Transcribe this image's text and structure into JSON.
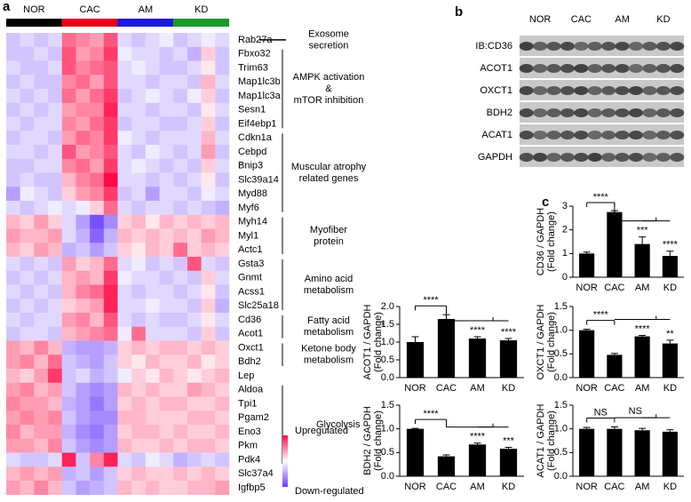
{
  "panel_labels": [
    "a",
    "b",
    "c"
  ],
  "blot": {
    "groups": [
      "NOR",
      "CAC",
      "AM",
      "KD"
    ],
    "rows": [
      "IB:CD36",
      "ACOT1",
      "OXCT1",
      "BDH2",
      "ACAT1",
      "GAPDH"
    ]
  },
  "chart_data": [
    {
      "type": "heatmap",
      "groups": [
        {
          "name": "NOR",
          "color": "#000000"
        },
        {
          "name": "CAC",
          "color": "#e8001c"
        },
        {
          "name": "AM",
          "color": "#1a1adc"
        },
        {
          "name": "KD",
          "color": "#1a9a2a"
        }
      ],
      "clim": [
        -1,
        1
      ],
      "colorscale": {
        "high": "#ff0a46",
        "mid": "#ffffff",
        "low": "#6a3cff"
      },
      "legend": {
        "high_label": "Upregulated",
        "low_label": "Down-regulated"
      },
      "rows": [
        "Rab27a",
        "Fbxo32",
        "Trim63",
        "Map1lc3b",
        "Map1lc3a",
        "Sesn1",
        "Eif4ebp1",
        "Cdkn1a",
        "Cebpd",
        "Bnip3",
        "Slc39a14",
        "Myd88",
        "Myf6",
        "Myh14",
        "Myl1",
        "Actc1",
        "Gsta3",
        "Gnmt",
        "Acss1",
        "Slc25a18",
        "Cd36",
        "Acot1",
        "Oxct1",
        "Bdh2",
        "Lep",
        "Aldoa",
        "Tpi1",
        "Pgam2",
        "Eno3",
        "Pkm",
        "Pdk4",
        "Slc37a4",
        "Igfbp5"
      ],
      "annotations": [
        {
          "lines": [
            "Exosome",
            "secretion"
          ]
        },
        {
          "lines": [
            "AMPK activation",
            "&",
            "mTOR inhibition"
          ]
        },
        {
          "lines": [
            "Muscular atrophy",
            "related genes"
          ]
        },
        {
          "lines": [
            "Myofiber",
            "protein"
          ]
        },
        {
          "lines": [
            "Amino acid",
            "metabolism"
          ]
        },
        {
          "lines": [
            "Fatty acid",
            "metabolism"
          ]
        },
        {
          "lines": [
            "Ketone body",
            "metabolism"
          ]
        },
        {
          "lines": [
            "Glycolysis"
          ]
        }
      ],
      "values": [
        [
          -0.3,
          -0.2,
          -0.3,
          -0.2,
          0.6,
          0.5,
          0.4,
          0.7,
          -0.2,
          -0.3,
          -0.2,
          -0.1,
          -0.3,
          -0.2,
          -0.1,
          -0.2
        ],
        [
          -0.3,
          -0.3,
          -0.2,
          -0.3,
          0.7,
          0.4,
          0.5,
          0.8,
          -0.1,
          -0.2,
          -0.2,
          -0.3,
          -0.2,
          -0.4,
          0.2,
          -0.3
        ],
        [
          -0.2,
          -0.3,
          -0.3,
          -0.2,
          0.7,
          0.5,
          0.6,
          0.7,
          -0.2,
          -0.1,
          -0.2,
          -0.3,
          -0.3,
          -0.2,
          0.1,
          -0.3
        ],
        [
          -0.3,
          -0.2,
          -0.3,
          -0.3,
          0.5,
          0.6,
          0.4,
          0.7,
          -0.2,
          -0.2,
          -0.3,
          -0.2,
          -0.2,
          -0.3,
          0.3,
          -0.2
        ],
        [
          -0.2,
          -0.3,
          -0.2,
          -0.3,
          0.6,
          0.4,
          0.6,
          0.8,
          -0.3,
          -0.2,
          -0.1,
          -0.2,
          -0.3,
          -0.1,
          0.2,
          -0.3
        ],
        [
          -0.3,
          -0.2,
          -0.3,
          -0.2,
          0.4,
          0.5,
          0.5,
          0.9,
          -0.2,
          -0.2,
          -0.3,
          -0.2,
          -0.2,
          -0.3,
          0.1,
          -0.2
        ],
        [
          -0.2,
          -0.3,
          -0.2,
          -0.2,
          0.5,
          0.4,
          0.6,
          0.8,
          -0.3,
          -0.2,
          -0.2,
          -0.3,
          -0.3,
          -0.2,
          0.2,
          -0.3
        ],
        [
          -0.3,
          -0.2,
          -0.2,
          -0.3,
          0.4,
          0.6,
          0.5,
          0.8,
          -0.1,
          -0.2,
          -0.3,
          -0.2,
          -0.2,
          -0.2,
          0.3,
          -0.2
        ],
        [
          -0.2,
          -0.2,
          -0.3,
          -0.2,
          0.7,
          0.4,
          0.5,
          0.7,
          -0.2,
          -0.3,
          -0.1,
          -0.2,
          -0.3,
          -0.2,
          0.4,
          -0.3
        ],
        [
          -0.3,
          -0.3,
          -0.2,
          -0.2,
          0.5,
          0.6,
          0.4,
          0.8,
          -0.2,
          -0.1,
          -0.2,
          -0.3,
          -0.2,
          -0.3,
          0.2,
          -0.2
        ],
        [
          -0.3,
          -0.2,
          -0.3,
          -0.3,
          0.3,
          0.5,
          0.6,
          1.0,
          -0.2,
          -0.2,
          -0.3,
          -0.2,
          -0.3,
          -0.2,
          0.1,
          -0.3
        ],
        [
          -0.5,
          -0.1,
          -0.2,
          -0.3,
          0.2,
          0.4,
          0.5,
          0.8,
          -0.3,
          -0.2,
          -0.5,
          -0.2,
          -0.2,
          -0.3,
          -0.1,
          -0.2
        ],
        [
          -0.2,
          -0.3,
          -0.2,
          -0.1,
          -0.2,
          -0.1,
          0.2,
          0.6,
          -0.2,
          -0.3,
          -0.2,
          -0.2,
          -0.3,
          -0.2,
          -0.3,
          -0.4
        ],
        [
          0.3,
          0.2,
          0.4,
          0.2,
          -0.2,
          -0.5,
          -0.9,
          -0.6,
          0.2,
          0.3,
          0.1,
          0.3,
          0.2,
          0.3,
          0.2,
          0.3
        ],
        [
          0.4,
          0.3,
          0.3,
          0.4,
          -0.2,
          -0.4,
          -0.8,
          -0.4,
          0.3,
          0.2,
          0.3,
          0.2,
          0.3,
          0.2,
          0.4,
          0.3
        ],
        [
          0.3,
          0.2,
          0.4,
          0.3,
          -0.4,
          -0.3,
          -0.5,
          -0.3,
          0.2,
          0.1,
          0.3,
          0.2,
          0.6,
          0.2,
          0.3,
          0.2
        ],
        [
          -0.2,
          -0.3,
          -0.2,
          -0.3,
          0.4,
          0.2,
          0.3,
          0.6,
          -0.2,
          -0.1,
          -0.3,
          -0.2,
          -0.3,
          0.7,
          -0.2,
          -0.3
        ],
        [
          -0.3,
          -0.2,
          -0.3,
          -0.2,
          0.3,
          0.4,
          0.3,
          0.8,
          -0.1,
          -0.2,
          -0.2,
          -0.3,
          -0.2,
          -0.3,
          0.2,
          -0.2
        ],
        [
          -0.2,
          -0.3,
          -0.2,
          -0.3,
          0.3,
          0.5,
          0.6,
          0.9,
          -0.2,
          -0.3,
          -0.2,
          -0.2,
          -0.3,
          -0.2,
          0.1,
          -0.3
        ],
        [
          -0.3,
          -0.2,
          -0.3,
          -0.2,
          0.2,
          0.3,
          0.4,
          0.9,
          -0.2,
          -0.2,
          -0.1,
          -0.2,
          -0.2,
          -0.3,
          0.2,
          -0.4
        ],
        [
          -0.2,
          -0.3,
          -0.2,
          -0.2,
          0.4,
          0.5,
          0.3,
          0.7,
          -0.2,
          -0.3,
          -0.2,
          -0.3,
          -0.3,
          -0.2,
          0.1,
          -0.2
        ],
        [
          -0.3,
          -0.2,
          -0.2,
          -0.3,
          0.3,
          0.4,
          0.5,
          0.6,
          -0.1,
          0.6,
          -0.2,
          -0.2,
          -0.2,
          -0.3,
          0.2,
          -0.3
        ],
        [
          0.4,
          0.3,
          0.5,
          0.3,
          -0.4,
          -0.5,
          -0.5,
          -0.4,
          0.2,
          0.3,
          0.2,
          0.3,
          0.3,
          0.2,
          0.3,
          0.2
        ],
        [
          0.4,
          0.5,
          0.3,
          0.6,
          -0.3,
          -0.4,
          -0.5,
          -0.3,
          0.2,
          0.1,
          0.3,
          0.2,
          0.2,
          0.3,
          0.1,
          0.2
        ],
        [
          0.3,
          0.2,
          0.4,
          0.8,
          -0.3,
          -0.2,
          -0.4,
          -0.3,
          -0.1,
          0.2,
          0.1,
          0.3,
          0.2,
          0.1,
          0.2,
          0.3
        ],
        [
          0.4,
          0.5,
          0.3,
          0.4,
          -0.3,
          -0.5,
          -0.6,
          -0.5,
          0.3,
          0.2,
          0.3,
          0.2,
          0.2,
          0.4,
          0.3,
          0.2
        ],
        [
          0.5,
          0.4,
          0.4,
          0.3,
          -0.4,
          -0.5,
          -0.7,
          -0.5,
          0.2,
          0.3,
          0.2,
          0.3,
          0.3,
          0.2,
          0.2,
          0.3
        ],
        [
          0.4,
          0.5,
          0.4,
          0.5,
          -0.3,
          -0.5,
          -0.6,
          -0.6,
          0.3,
          0.3,
          0.2,
          0.2,
          0.2,
          0.3,
          0.3,
          0.2
        ],
        [
          0.5,
          0.3,
          0.4,
          0.4,
          -0.4,
          -0.6,
          -0.7,
          -0.5,
          0.2,
          0.3,
          0.3,
          0.2,
          0.3,
          0.2,
          0.2,
          0.3
        ],
        [
          0.4,
          0.4,
          0.3,
          0.5,
          -0.3,
          -0.5,
          -0.6,
          -0.5,
          0.3,
          0.2,
          0.2,
          0.3,
          0.2,
          0.3,
          0.3,
          0.2
        ],
        [
          -0.2,
          -0.3,
          -0.3,
          -0.2,
          0.9,
          -0.3,
          0.5,
          0.9,
          -0.2,
          -0.3,
          -0.1,
          -0.2,
          -0.4,
          -0.3,
          -0.2,
          -0.3
        ],
        [
          0.3,
          0.4,
          0.3,
          0.4,
          -0.4,
          -0.3,
          -0.5,
          -0.3,
          0.2,
          0.3,
          0.2,
          0.2,
          0.3,
          0.2,
          0.3,
          0.2
        ],
        [
          0.4,
          0.3,
          0.5,
          0.3,
          -0.3,
          -0.5,
          -0.4,
          -0.3,
          0.3,
          0.2,
          0.3,
          0.2,
          0.2,
          0.3,
          0.3,
          0.4
        ]
      ]
    },
    {
      "type": "bar",
      "ylabel": [
        "CD36 / GAPDH",
        "(Fold change)"
      ],
      "color": "#000000",
      "categories": [
        "NOR",
        "CAC",
        "AM",
        "KD"
      ],
      "values": [
        1.0,
        2.75,
        1.4,
        0.9
      ],
      "errors": [
        0.06,
        0.06,
        0.3,
        0.2
      ],
      "ylim": [
        0,
        3
      ],
      "yticks": [
        0,
        1,
        2,
        3
      ],
      "significance": [
        "****",
        "***",
        "****"
      ]
    },
    {
      "type": "bar",
      "ylabel": [
        "ACOT1 / GAPDH",
        "(Fold change)"
      ],
      "color": "#000000",
      "categories": [
        "NOR",
        "CAC",
        "AM",
        "KD"
      ],
      "values": [
        1.0,
        1.65,
        1.1,
        1.05
      ],
      "errors": [
        0.15,
        0.12,
        0.05,
        0.05
      ],
      "ylim": [
        0,
        2
      ],
      "yticks": [
        {
          "value": 0,
          "label": "0.0"
        },
        0.5,
        {
          "value": 1,
          "label": "1.0"
        },
        1.5,
        {
          "value": 2,
          "label": "2.0"
        }
      ],
      "significance": [
        "****",
        "****",
        "****"
      ]
    },
    {
      "type": "bar",
      "ylabel": [
        "OXCT1 / GAPDH",
        "(Fold change)"
      ],
      "color": "#000000",
      "categories": [
        "NOR",
        "CAC",
        "AM",
        "KD"
      ],
      "values": [
        1.0,
        0.48,
        0.87,
        0.72
      ],
      "errors": [
        0.02,
        0.03,
        0.02,
        0.07
      ],
      "ylim": [
        0,
        1.5
      ],
      "yticks": [
        {
          "value": 0,
          "label": "0.0"
        },
        0.5,
        {
          "value": 1,
          "label": "1.0"
        },
        1.5
      ],
      "significance": [
        "****",
        "****",
        "**"
      ]
    },
    {
      "type": "bar",
      "ylabel": [
        "BDH2 / GAPDH",
        "(Fold change)"
      ],
      "color": "#000000",
      "categories": [
        "NOR",
        "CAC",
        "AM",
        "KD"
      ],
      "values": [
        1.0,
        0.42,
        0.67,
        0.58
      ],
      "errors": [
        0.01,
        0.03,
        0.03,
        0.03
      ],
      "ylim": [
        0,
        1.5
      ],
      "yticks": [
        {
          "value": 0,
          "label": "0.0"
        },
        0.5,
        {
          "value": 1,
          "label": "1.0"
        },
        1.5
      ],
      "significance": [
        "****",
        "****",
        "***"
      ]
    },
    {
      "type": "bar",
      "ylabel": [
        "ACAT1 / GAPDH",
        "(Fold change)"
      ],
      "color": "#000000",
      "categories": [
        "NOR",
        "CAC",
        "AM",
        "KD"
      ],
      "values": [
        1.0,
        1.0,
        0.97,
        0.94
      ],
      "errors": [
        0.03,
        0.04,
        0.04,
        0.04
      ],
      "ylim": [
        0,
        1.5
      ],
      "yticks": [
        {
          "value": 0,
          "label": "0.0"
        },
        0.5,
        {
          "value": 1,
          "label": "1.0"
        },
        1.5
      ],
      "significance": [
        "NS",
        "NS"
      ]
    }
  ]
}
